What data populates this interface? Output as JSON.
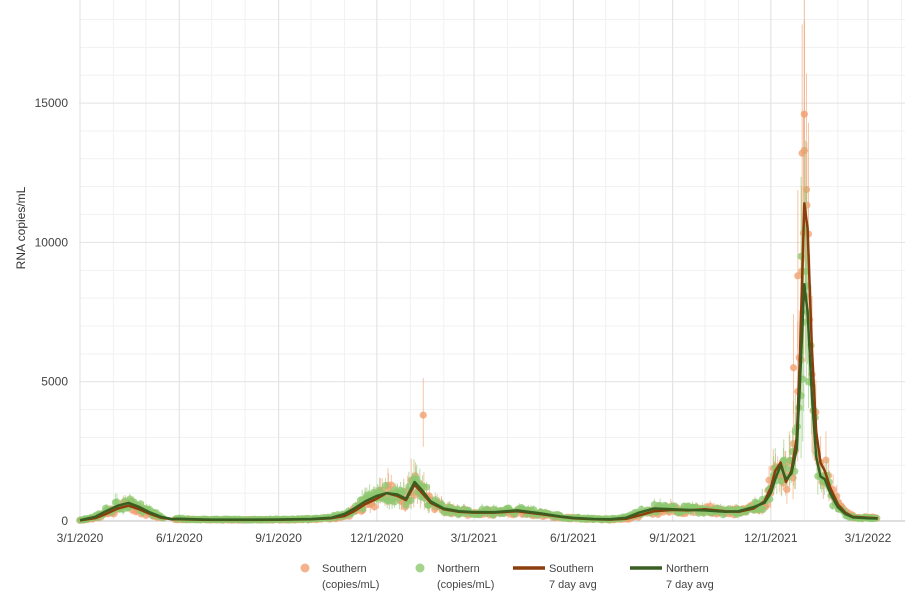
{
  "chart_data": {
    "type": "scatter",
    "title": "",
    "xlabel": "",
    "ylabel": "RNA copies/mL",
    "x_range": [
      "2020-03-01",
      "2022-03-31"
    ],
    "ylim": [
      0,
      18700
    ],
    "grid": true,
    "legend_position": "bottom",
    "x_ticks": [
      "3/1/2020",
      "6/1/2020",
      "9/1/2020",
      "12/1/2020",
      "3/1/2021",
      "6/1/2021",
      "9/1/2021",
      "12/1/2021",
      "3/1/2022"
    ],
    "y_ticks": [
      0,
      5000,
      10000,
      15000
    ],
    "colors": {
      "southern_points": "#f0a070",
      "northern_points": "#8cc870",
      "southern_avg": "#8b3e0c",
      "northern_avg": "#3a5e22",
      "grid": "#e2e2e2",
      "minor_grid": "#f1f1f1"
    },
    "legend": [
      {
        "key": "southern_points",
        "line1": "Southern",
        "line2": "(copies/mL)",
        "marker": "dot"
      },
      {
        "key": "northern_points",
        "line1": "Northern",
        "line2": "(copies/mL)",
        "marker": "dot"
      },
      {
        "key": "southern_avg",
        "line1": "Southern",
        "line2": "7 day avg",
        "marker": "line"
      },
      {
        "key": "northern_avg",
        "line1": "Northern",
        "line2": "7 day avg",
        "marker": "line"
      }
    ],
    "series": [
      {
        "name": "Southern 7 day avg",
        "kind": "line",
        "color_key": "southern_avg",
        "x": [
          "2020-03-01",
          "2020-03-15",
          "2020-03-25",
          "2020-04-05",
          "2020-04-15",
          "2020-04-25",
          "2020-05-05",
          "2020-05-15",
          "2020-05-25",
          "2020-06-01",
          "2020-06-15",
          "2020-07-01",
          "2020-08-01",
          "2020-09-01",
          "2020-10-01",
          "2020-10-20",
          "2020-11-01",
          "2020-11-10",
          "2020-11-20",
          "2020-12-01",
          "2020-12-10",
          "2020-12-20",
          "2020-12-28",
          "2021-01-05",
          "2021-01-12",
          "2021-01-20",
          "2021-02-01",
          "2021-02-15",
          "2021-03-01",
          "2021-03-20",
          "2021-04-10",
          "2021-05-01",
          "2021-05-20",
          "2021-06-01",
          "2021-06-20",
          "2021-07-05",
          "2021-07-20",
          "2021-08-01",
          "2021-08-15",
          "2021-09-01",
          "2021-09-15",
          "2021-10-01",
          "2021-10-20",
          "2021-11-01",
          "2021-11-15",
          "2021-11-25",
          "2021-12-01",
          "2021-12-05",
          "2021-12-10",
          "2021-12-15",
          "2021-12-20",
          "2021-12-25",
          "2021-12-28",
          "2022-01-01",
          "2022-01-04",
          "2022-01-08",
          "2022-01-12",
          "2022-01-16",
          "2022-01-20",
          "2022-01-25",
          "2022-02-01",
          "2022-02-08",
          "2022-02-15",
          "2022-03-01",
          "2022-03-10"
        ],
        "y": [
          20,
          100,
          250,
          450,
          550,
          420,
          250,
          120,
          60,
          60,
          50,
          40,
          40,
          45,
          60,
          100,
          180,
          350,
          600,
          800,
          1000,
          900,
          750,
          1300,
          1000,
          650,
          420,
          330,
          300,
          300,
          350,
          250,
          150,
          100,
          60,
          50,
          80,
          200,
          350,
          400,
          380,
          420,
          350,
          330,
          450,
          700,
          1200,
          1800,
          2100,
          1400,
          1800,
          3000,
          6000,
          11400,
          10500,
          6200,
          3200,
          2100,
          1800,
          1200,
          600,
          300,
          150,
          120,
          100
        ]
      },
      {
        "name": "Northern 7 day avg",
        "kind": "line",
        "color_key": "northern_avg",
        "x": [
          "2020-03-01",
          "2020-03-15",
          "2020-03-25",
          "2020-04-05",
          "2020-04-15",
          "2020-04-25",
          "2020-05-05",
          "2020-05-15",
          "2020-05-25",
          "2020-06-01",
          "2020-06-15",
          "2020-07-01",
          "2020-08-01",
          "2020-09-01",
          "2020-10-01",
          "2020-10-20",
          "2020-11-01",
          "2020-11-10",
          "2020-11-20",
          "2020-12-01",
          "2020-12-10",
          "2020-12-20",
          "2020-12-28",
          "2021-01-05",
          "2021-01-12",
          "2021-01-20",
          "2021-02-01",
          "2021-02-15",
          "2021-03-01",
          "2021-03-20",
          "2021-04-10",
          "2021-05-01",
          "2021-05-20",
          "2021-06-01",
          "2021-06-20",
          "2021-07-05",
          "2021-07-20",
          "2021-08-01",
          "2021-08-15",
          "2021-09-01",
          "2021-09-15",
          "2021-10-01",
          "2021-10-20",
          "2021-11-01",
          "2021-11-15",
          "2021-11-25",
          "2021-12-01",
          "2021-12-05",
          "2021-12-10",
          "2021-12-15",
          "2021-12-20",
          "2021-12-25",
          "2021-12-28",
          "2022-01-01",
          "2022-01-04",
          "2022-01-08",
          "2022-01-12",
          "2022-01-16",
          "2022-01-20",
          "2022-01-25",
          "2022-02-01",
          "2022-02-08",
          "2022-02-15",
          "2022-03-01",
          "2022-03-10"
        ],
        "y": [
          30,
          150,
          350,
          550,
          650,
          500,
          300,
          150,
          70,
          80,
          60,
          50,
          50,
          55,
          70,
          120,
          250,
          450,
          700,
          900,
          1000,
          950,
          800,
          1400,
          1100,
          700,
          450,
          350,
          320,
          320,
          380,
          280,
          160,
          110,
          70,
          60,
          120,
          300,
          450,
          420,
          400,
          380,
          330,
          350,
          500,
          650,
          1000,
          1500,
          2000,
          1500,
          1700,
          2600,
          5000,
          8500,
          7500,
          4500,
          2300,
          1600,
          1500,
          1000,
          500,
          250,
          130,
          100,
          90
        ]
      }
    ]
  }
}
